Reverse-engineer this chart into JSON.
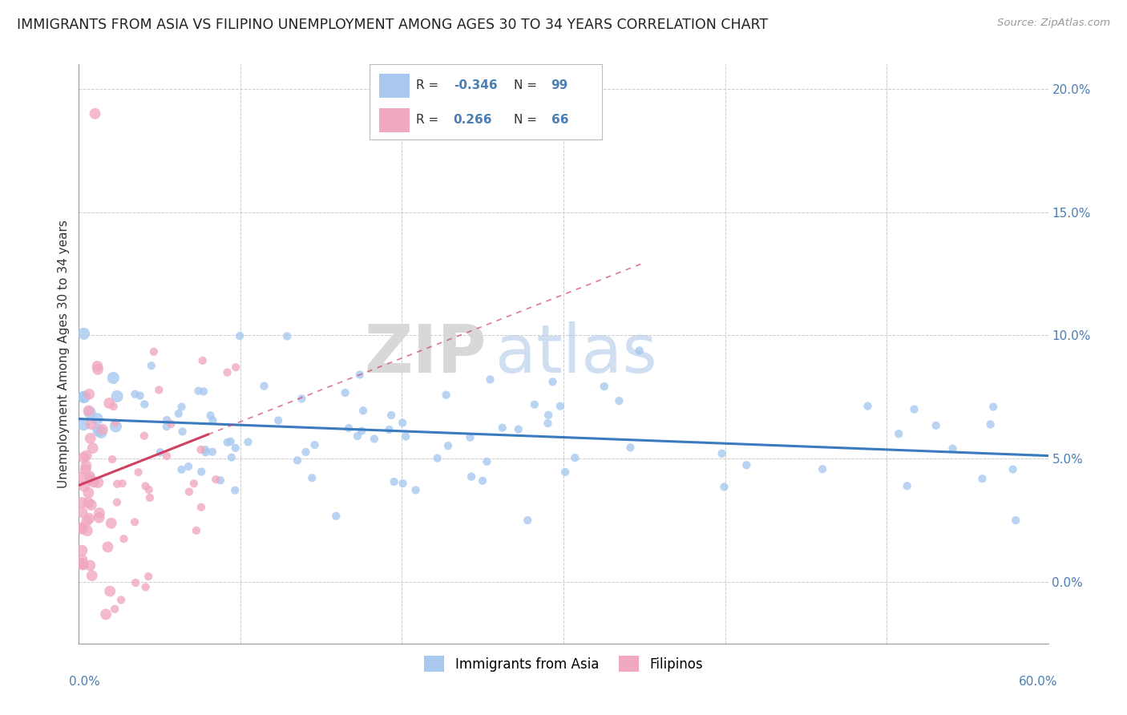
{
  "title": "IMMIGRANTS FROM ASIA VS FILIPINO UNEMPLOYMENT AMONG AGES 30 TO 34 YEARS CORRELATION CHART",
  "source": "Source: ZipAtlas.com",
  "ylabel": "Unemployment Among Ages 30 to 34 years",
  "legend_r_blue": "-0.346",
  "legend_n_blue": "99",
  "legend_r_pink": "0.266",
  "legend_n_pink": "66",
  "blue_color": "#a8c8f0",
  "pink_color": "#f0a8c0",
  "blue_line_color": "#3a7abf",
  "pink_line_color": "#d04060",
  "watermark_zip": "ZIP",
  "watermark_atlas": "atlas",
  "xlim": [
    0,
    60
  ],
  "ylim": [
    -2.5,
    21
  ],
  "ytick_vals": [
    0,
    5,
    10,
    15,
    20
  ],
  "ytick_labels": [
    "0.0%",
    "5.0%",
    "10.0%",
    "15.0%",
    "20.0%"
  ],
  "xtick_left_label": "0.0%",
  "xtick_right_label": "60.0%",
  "legend_label_blue": "Immigrants from Asia",
  "legend_label_pink": "Filipinos",
  "blue_seed": 12345,
  "pink_seed": 67890
}
